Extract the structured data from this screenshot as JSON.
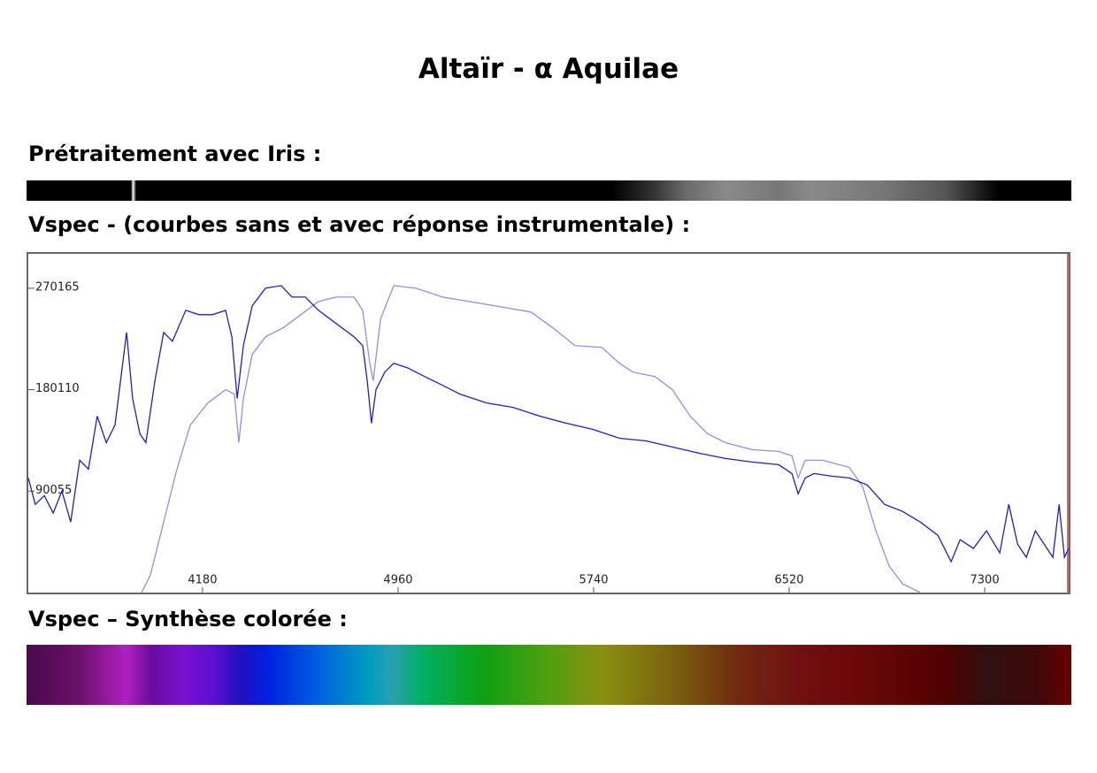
{
  "title": "Altaïr - α Aquilae",
  "sections": [
    {
      "heading": "Prétraitement avec Iris :"
    },
    {
      "heading": "Vspec - (courbes sans et avec réponse instrumentale) :"
    },
    {
      "heading": "Vspec – Synthèse colorée :"
    }
  ],
  "chart_data": {
    "type": "line",
    "xlim": [
      3485,
      7635
    ],
    "ylim": [
      0,
      300700
    ],
    "xticks": [
      4180,
      4960,
      5740,
      6520,
      7300
    ],
    "yticks": [
      90055,
      180110,
      270165
    ],
    "series": [
      {
        "color": "#1f1fc4",
        "x": [
          3485,
          3513,
          3549,
          3584,
          3619,
          3654,
          3690,
          3725,
          3760,
          3796,
          3831,
          3877,
          3901,
          3930,
          3954,
          3990,
          4025,
          4060,
          4113,
          4166,
          4219,
          4272,
          4297,
          4318,
          4343,
          4378,
          4431,
          4494,
          4537,
          4590,
          4643,
          4713,
          4784,
          4819,
          4837,
          4854,
          4872,
          4907,
          4943,
          4996,
          5066,
          5137,
          5207,
          5313,
          5419,
          5525,
          5631,
          5737,
          5843,
          5949,
          6054,
          6160,
          6266,
          6372,
          6478,
          6531,
          6556,
          6584,
          6619,
          6690,
          6760,
          6831,
          6901,
          6972,
          7043,
          7113,
          7166,
          7202,
          7255,
          7307,
          7360,
          7396,
          7431,
          7466,
          7502,
          7537,
          7572,
          7597,
          7618,
          7635
        ],
        "values": [
          101790,
          78300,
          86130,
          70470,
          90045,
          62640,
          117450,
          109620,
          156600,
          133110,
          148770,
          230985,
          172260,
          140940,
          133110,
          187920,
          230985,
          223155,
          250560,
          246645,
          246645,
          250560,
          227070,
          172260,
          219240,
          254475,
          270135,
          272484,
          262305,
          262305,
          250560,
          238815,
          227070,
          219240,
          187920,
          150336,
          180090,
          195750,
          203580,
          199665,
          191835,
          184005,
          176175,
          168345,
          164430,
          156600,
          150336,
          144855,
          137025,
          134676,
          129195,
          123714,
          119016,
          115884,
          113535,
          105705,
          87696,
          101790,
          105705,
          103356,
          101790,
          95526,
          78300,
          72036,
          62640,
          50895,
          27405,
          46980,
          39150,
          54810,
          35235,
          78300,
          43065,
          31320,
          54810,
          43065,
          31320,
          78300,
          31320,
          39150
        ]
      },
      {
        "color": "#8f8fe8",
        "x": [
          3937,
          3972,
          4025,
          4078,
          4131,
          4201,
          4272,
          4307,
          4325,
          4343,
          4378,
          4431,
          4501,
          4572,
          4643,
          4713,
          4784,
          4819,
          4847,
          4861,
          4890,
          4943,
          5031,
          5137,
          5243,
          5348,
          5490,
          5578,
          5666,
          5772,
          5843,
          5896,
          5984,
          6054,
          6125,
          6195,
          6266,
          6372,
          6478,
          6531,
          6556,
          6584,
          6654,
          6760,
          6813,
          6866,
          6919,
          6972,
          7043
        ],
        "values": [
          0,
          15660,
          62640,
          109620,
          148770,
          168345,
          180090,
          176175,
          133110,
          172260,
          211410,
          227070,
          234900,
          246645,
          258390,
          262305,
          262305,
          250560,
          203580,
          187920,
          242730,
          272484,
          270135,
          262305,
          258390,
          254475,
          249006,
          234900,
          219240,
          217674,
          203580,
          195750,
          191835,
          180090,
          156600,
          140940,
          133110,
          126846,
          125280,
          121365,
          101790,
          117450,
          117450,
          111186,
          93960,
          54810,
          23490,
          7830,
          0
        ]
      }
    ]
  }
}
